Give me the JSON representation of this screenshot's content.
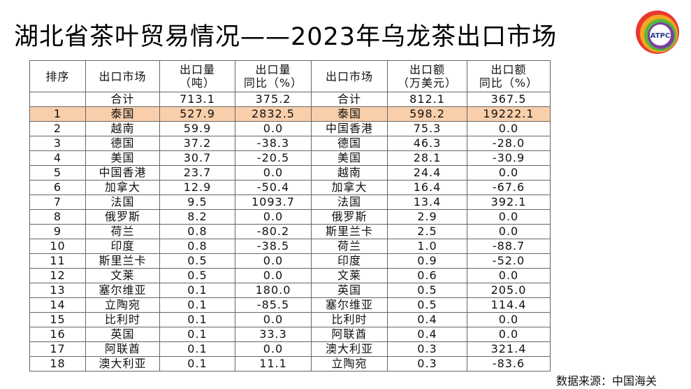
{
  "header": {
    "title": "湖北省茶叶贸易情况——2023年乌龙茶出口市场",
    "logo": "ATPC"
  },
  "table": {
    "header": [
      [
        "排序"
      ],
      [
        "出口市场"
      ],
      [
        "出口量",
        "（吨）"
      ],
      [
        "出口量",
        "同比（%）"
      ],
      [
        "出口市场"
      ],
      [
        "出口额",
        "（万美元）"
      ],
      [
        "出口额",
        "同比（%）"
      ]
    ],
    "rows": [
      [
        null,
        "合计",
        "713.1",
        "375.2",
        "合计",
        "812.1",
        "367.5"
      ],
      [
        "1",
        "泰国",
        "527.9",
        "2832.5",
        "泰国",
        "598.2",
        "19222.1"
      ],
      [
        "2",
        "越南",
        "59.9",
        "0.0",
        "中国香港",
        "75.3",
        "0.0"
      ],
      [
        "3",
        "德国",
        "37.2",
        "-38.3",
        "德国",
        "46.3",
        "-28.0"
      ],
      [
        "4",
        "美国",
        "30.7",
        "-20.5",
        "美国",
        "28.1",
        "-30.9"
      ],
      [
        "5",
        "中国香港",
        "23.7",
        "0.0",
        "越南",
        "24.4",
        "0.0"
      ],
      [
        "6",
        "加拿大",
        "12.9",
        "-50.4",
        "加拿大",
        "16.4",
        "-67.6"
      ],
      [
        "7",
        "法国",
        "9.5",
        "1093.7",
        "法国",
        "13.4",
        "392.1"
      ],
      [
        "8",
        "俄罗斯",
        "8.2",
        "0.0",
        "俄罗斯",
        "2.9",
        "0.0"
      ],
      [
        "9",
        "荷兰",
        "0.8",
        "-80.2",
        "斯里兰卡",
        "2.5",
        "0.0"
      ],
      [
        "10",
        "印度",
        "0.8",
        "-38.5",
        "荷兰",
        "1.0",
        "-88.7"
      ],
      [
        "11",
        "斯里兰卡",
        "0.5",
        "0.0",
        "印度",
        "0.9",
        "-52.0"
      ],
      [
        "12",
        "文莱",
        "0.5",
        "0.0",
        "文莱",
        "0.6",
        "0.0"
      ],
      [
        "13",
        "塞尔维亚",
        "0.1",
        "180.0",
        "英国",
        "0.5",
        "205.0"
      ],
      [
        "14",
        "立陶宛",
        "0.1",
        "-85.5",
        "塞尔维亚",
        "0.5",
        "114.4"
      ],
      [
        "15",
        "比利时",
        "0.1",
        "0.0",
        "比利时",
        "0.4",
        "0.0"
      ],
      [
        "16",
        "英国",
        "0.1",
        "33.3",
        "阿联酋",
        "0.4",
        "0.0"
      ],
      [
        "17",
        "阿联酋",
        "0.1",
        "0.0",
        "澳大利亚",
        "0.3",
        "321.4"
      ],
      [
        "18",
        "澳大利亚",
        "0.1",
        "11.1",
        "立陶宛",
        "0.3",
        "-83.6"
      ]
    ],
    "highlight_row": 1
  },
  "source": "数据来源：中国海关"
}
